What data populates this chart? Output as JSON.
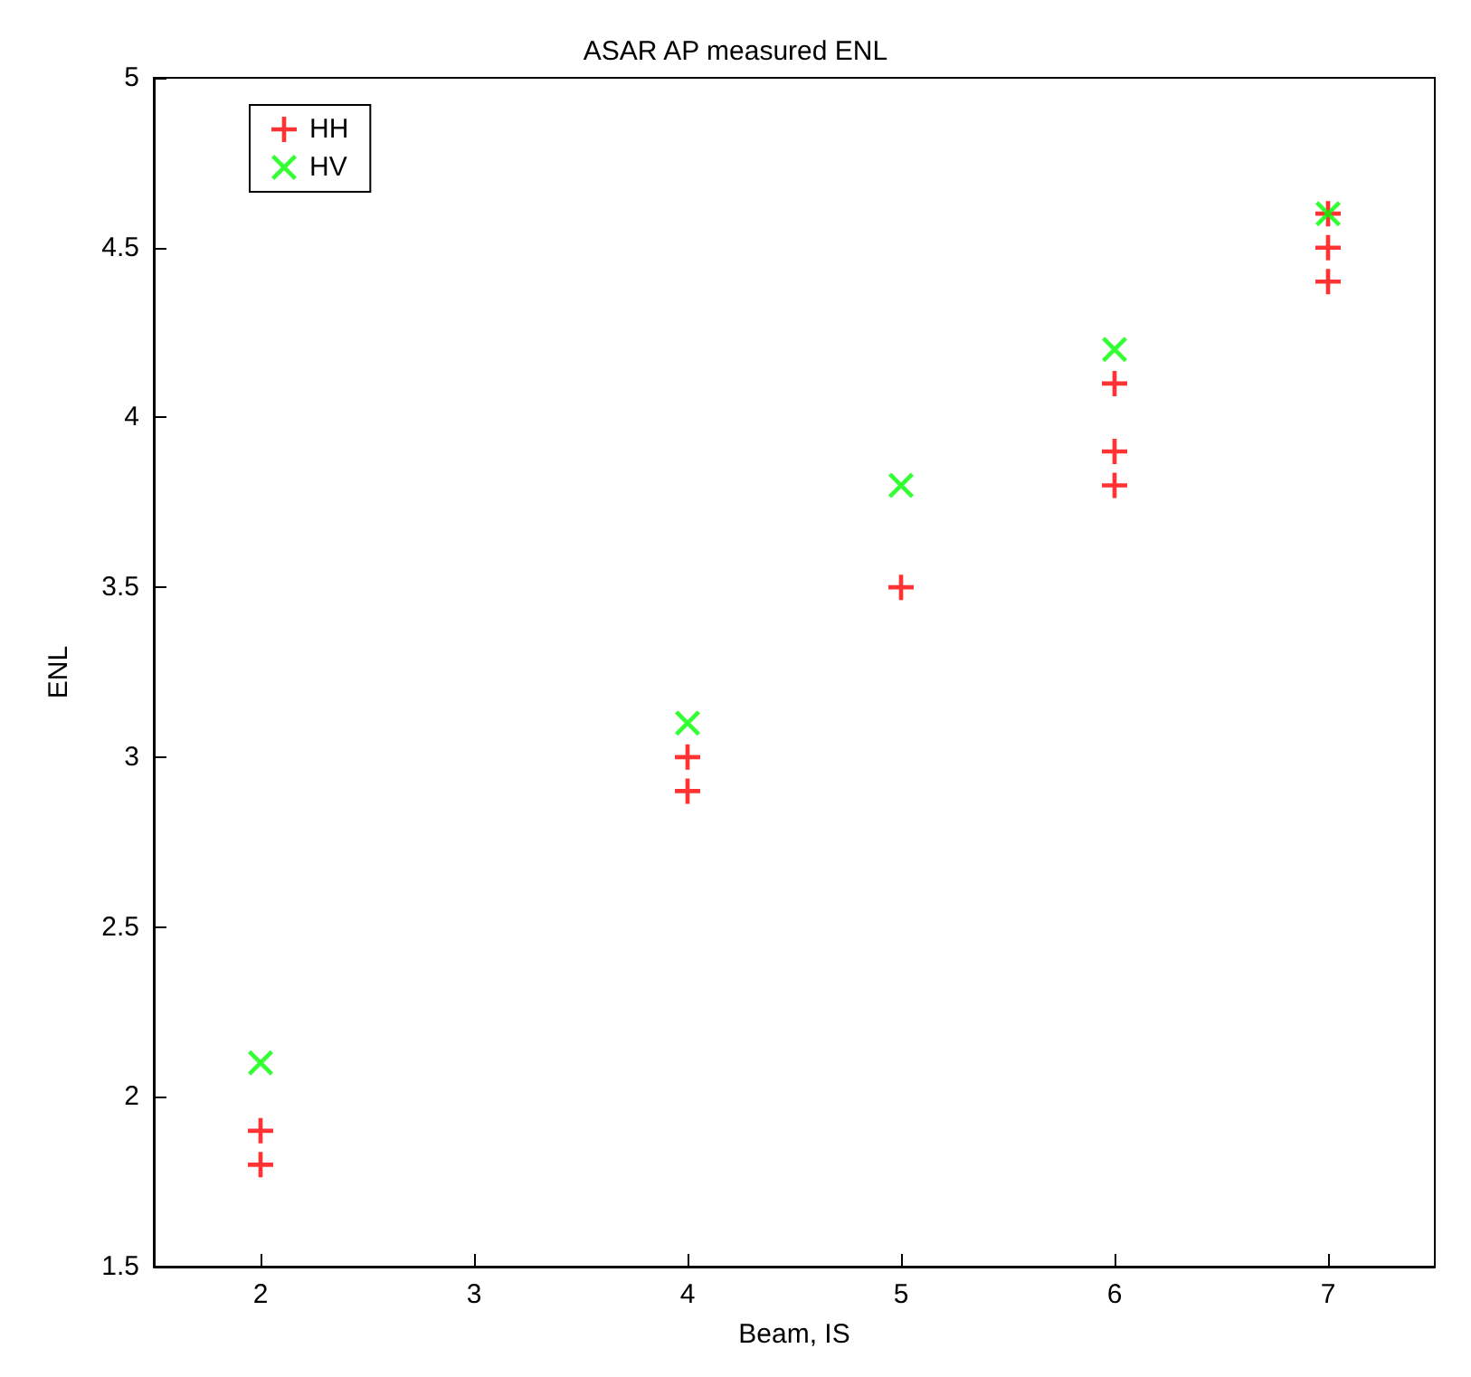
{
  "chart_data": {
    "type": "scatter",
    "title": "ASAR AP measured ENL",
    "xlabel": "Beam, IS",
    "ylabel": "ENL",
    "xlim": [
      1.5,
      7.5
    ],
    "xticks": [
      2,
      3,
      4,
      5,
      6,
      7
    ],
    "ylim": [
      1.5,
      5
    ],
    "yticks": [
      1.5,
      2,
      2.5,
      3,
      3.5,
      4,
      4.5,
      5
    ],
    "grid": false,
    "legend": "top left",
    "series": [
      {
        "name": "HH",
        "color": "#ff0000",
        "marker": "plus",
        "x": [
          2,
          2,
          4,
          4,
          5,
          6,
          6,
          6,
          7,
          7,
          7
        ],
        "values": [
          1.9,
          1.8,
          3.0,
          2.9,
          3.5,
          4.1,
          3.9,
          3.8,
          4.6,
          4.5,
          4.4
        ]
      },
      {
        "name": "HV",
        "color": "#00ff00",
        "marker": "cross",
        "x": [
          2,
          4,
          5,
          6,
          7
        ],
        "values": [
          2.1,
          3.1,
          3.8,
          4.2,
          4.6
        ]
      }
    ]
  }
}
